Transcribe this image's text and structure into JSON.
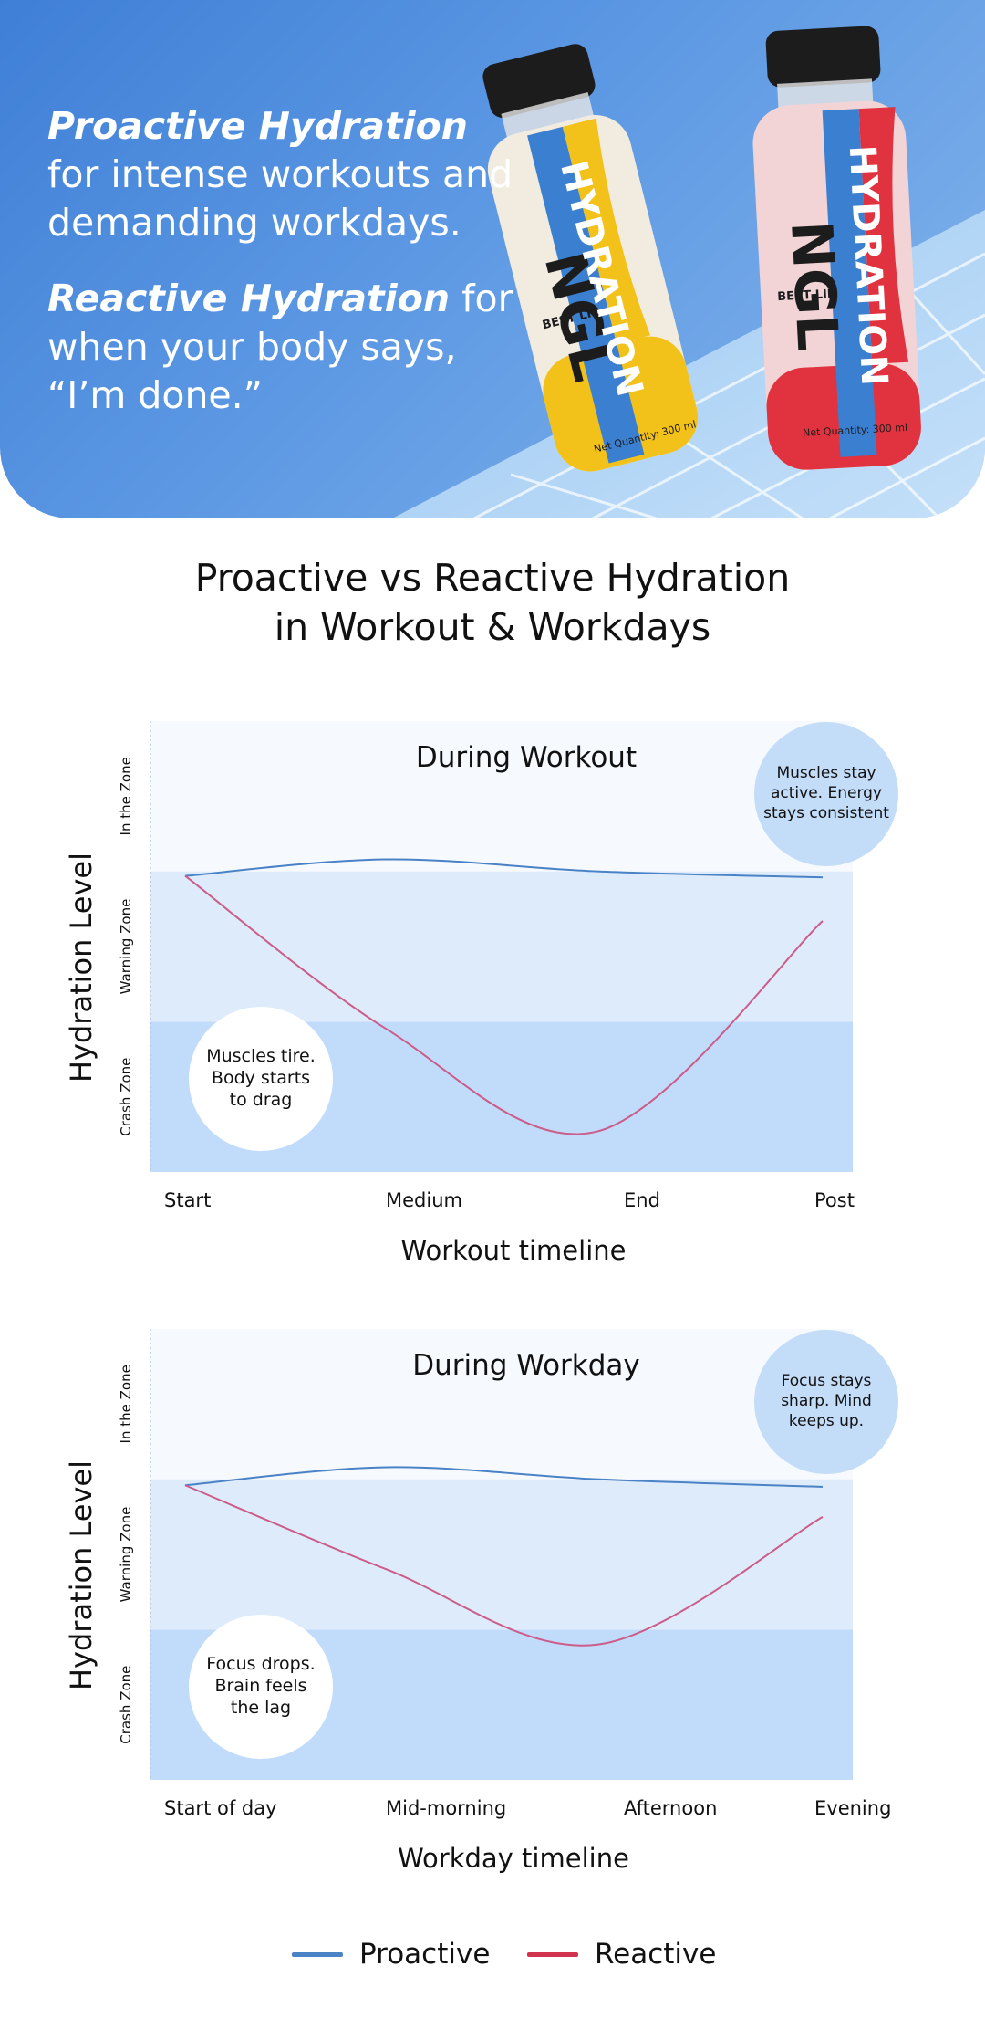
{
  "hero": {
    "line1_bold": "Proactive Hydration",
    "line1_rest": " for intense workouts and demanding workdays.",
    "line2_bold": "Reactive Hydration",
    "line2_rest": " for when your body says, “I’m done.”",
    "bottle1": {
      "brand": "NGL",
      "word": "HYDRATION",
      "tag": "BEST LIE",
      "net": "Net Quantity: 300 ml"
    },
    "bottle2": {
      "brand": "NGL",
      "word": "HYDRATION",
      "tag": "BEST LIE",
      "net": "Net Quantity: 300 ml"
    }
  },
  "main_title": {
    "line1": "Proactive vs Reactive Hydration",
    "line2": "in Workout & Workdays"
  },
  "colors": {
    "proactive": "#4a82c6",
    "reactive": "#cc5c8a",
    "legend_reactive": "#d1324d",
    "crash_zone": "#c1dcfa",
    "warning_zone": "#ddebfb",
    "zone_top": "#f6faff",
    "bubble_blue": "#c3dcf8"
  },
  "chart_data": [
    {
      "type": "line",
      "title": "During Workout",
      "xlabel": "Workout timeline",
      "ylabel": "Hydration Level",
      "categories": [
        "Start",
        "Medium",
        "End",
        "Post"
      ],
      "zones": [
        "Crash Zone",
        "Warning Zone",
        "In the Zone"
      ],
      "ylim": [
        0,
        3
      ],
      "series": [
        {
          "name": "Proactive",
          "values": [
            1.97,
            2.08,
            2.0,
            1.96
          ]
        },
        {
          "name": "Reactive",
          "values": [
            1.97,
            0.95,
            0.27,
            1.67
          ]
        }
      ],
      "annotations": {
        "reactive_note": [
          "Muscles tire.",
          "Body starts",
          "to drag"
        ],
        "proactive_note": [
          "Muscles stay",
          "active. Energy",
          "stays consistent"
        ]
      }
    },
    {
      "type": "line",
      "title": "During Workday",
      "xlabel": "Workday timeline",
      "ylabel": "Hydration Level",
      "categories": [
        "Start of day",
        "Mid-morning",
        "Afternoon",
        "Evening"
      ],
      "zones": [
        "Crash Zone",
        "Warning Zone",
        "In the Zone"
      ],
      "ylim": [
        0,
        3
      ],
      "series": [
        {
          "name": "Proactive",
          "values": [
            1.96,
            2.08,
            2.0,
            1.95
          ]
        },
        {
          "name": "Reactive",
          "values": [
            1.96,
            1.4,
            0.9,
            1.75
          ]
        }
      ],
      "annotations": {
        "reactive_note": [
          "Focus drops.",
          "Brain feels",
          "the lag"
        ],
        "proactive_note": [
          "Focus stays",
          "sharp. Mind",
          "keeps up."
        ]
      }
    }
  ],
  "legend": [
    {
      "label": "Proactive",
      "color": "#4a82c6"
    },
    {
      "label": "Reactive",
      "color": "#d1324d"
    }
  ]
}
